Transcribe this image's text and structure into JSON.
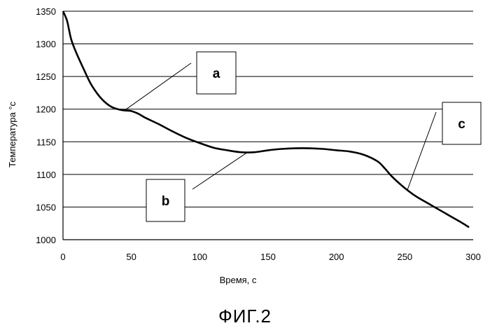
{
  "chart_data": {
    "type": "line",
    "xlabel": "Время, с",
    "ylabel": "Температура °с",
    "xlim": [
      0,
      300
    ],
    "ylim": [
      1000,
      1350
    ],
    "x_ticks": [
      0,
      50,
      100,
      150,
      200,
      250,
      300
    ],
    "y_ticks": [
      1000,
      1050,
      1100,
      1150,
      1200,
      1250,
      1300,
      1350
    ],
    "grid": "horizontal",
    "series": [
      {
        "x": [
          0,
          3,
          6,
          10,
          15,
          20,
          25,
          30,
          35,
          40,
          45,
          50,
          55,
          60,
          70,
          80,
          90,
          100,
          110,
          120,
          130,
          140,
          150,
          160,
          170,
          180,
          190,
          200,
          210,
          220,
          230,
          235,
          240,
          245,
          250,
          255,
          260,
          270,
          280,
          290,
          297
        ],
        "y": [
          1350,
          1335,
          1307,
          1285,
          1262,
          1240,
          1224,
          1212,
          1204,
          1200,
          1198,
          1197,
          1193,
          1187,
          1177,
          1166,
          1156,
          1148,
          1141,
          1137,
          1134,
          1134,
          1137,
          1139,
          1140,
          1140,
          1139,
          1137,
          1135,
          1130,
          1120,
          1110,
          1098,
          1088,
          1079,
          1071,
          1064,
          1052,
          1040,
          1028,
          1019
        ]
      }
    ],
    "annotations": [
      {
        "label": "a",
        "x": 45,
        "y": 1198
      },
      {
        "label": "b",
        "x": 135,
        "y": 1134
      },
      {
        "label": "c",
        "x": 252,
        "y": 1077
      }
    ]
  },
  "caption": "ФИГ.2"
}
